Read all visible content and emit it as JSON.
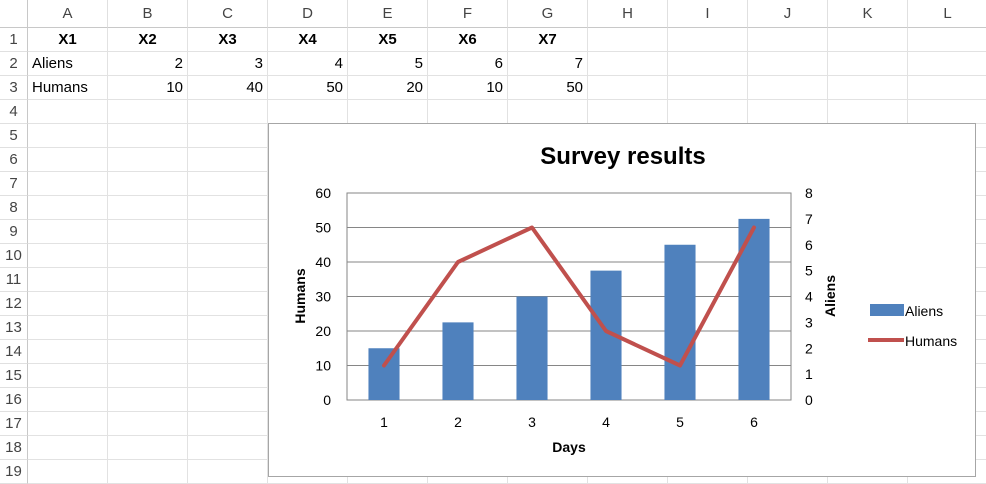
{
  "columns": [
    "A",
    "B",
    "C",
    "D",
    "E",
    "F",
    "G",
    "H",
    "I",
    "J",
    "K",
    "L"
  ],
  "rows": [
    "1",
    "2",
    "3",
    "4",
    "5",
    "6",
    "7",
    "8",
    "9",
    "10",
    "11",
    "12",
    "13",
    "14",
    "15",
    "16",
    "17",
    "18",
    "19"
  ],
  "cells": {
    "header_row": [
      "X1",
      "X2",
      "X3",
      "X4",
      "X5",
      "X6",
      "X7"
    ],
    "aliens_row": {
      "label": "Aliens",
      "values": [
        "2",
        "3",
        "4",
        "5",
        "6",
        "7"
      ]
    },
    "humans_row": {
      "label": "Humans",
      "values": [
        "10",
        "40",
        "50",
        "20",
        "10",
        "50"
      ]
    }
  },
  "chart_data": {
    "type": "bar",
    "title": "Survey results",
    "xlabel": "Days",
    "ylabel": "Humans",
    "y2label": "Aliens",
    "categories": [
      "1",
      "2",
      "3",
      "4",
      "5",
      "6"
    ],
    "series": [
      {
        "name": "Aliens",
        "type": "bar",
        "axis": "right",
        "values": [
          2,
          3,
          4,
          5,
          6,
          7
        ],
        "color": "#4F81BD"
      },
      {
        "name": "Humans",
        "type": "line",
        "axis": "left",
        "values": [
          10,
          40,
          50,
          20,
          10,
          50
        ],
        "color": "#C0504D"
      }
    ],
    "ylim": [
      0,
      60
    ],
    "yticks": [
      "0",
      "10",
      "20",
      "30",
      "40",
      "50",
      "60"
    ],
    "y2lim": [
      0,
      8
    ],
    "y2ticks": [
      "0",
      "1",
      "2",
      "3",
      "4",
      "5",
      "6",
      "7",
      "8"
    ],
    "grid": true,
    "legend": "right"
  }
}
